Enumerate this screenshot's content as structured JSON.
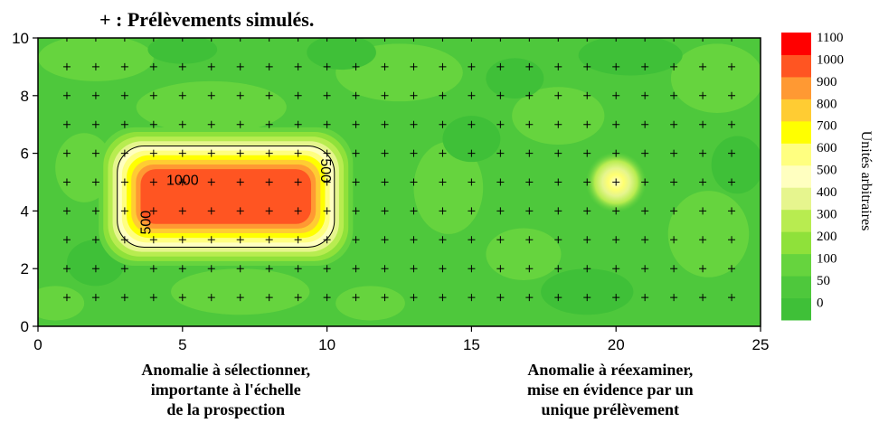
{
  "chart_data": {
    "type": "heatmap",
    "title": "+ : Prélèvements simulés.",
    "xlabel": "",
    "ylabel": "",
    "xlim": [
      0,
      25
    ],
    "ylim": [
      0,
      10
    ],
    "x_ticks": [
      "0",
      "5",
      "10",
      "15",
      "20",
      "25"
    ],
    "y_ticks": [
      "0",
      "2",
      "4",
      "6",
      "8",
      "10"
    ],
    "sample_grid": {
      "x": [
        1,
        2,
        3,
        4,
        5,
        6,
        7,
        8,
        9,
        10,
        11,
        12,
        13,
        14,
        15,
        16,
        17,
        18,
        19,
        20,
        21,
        22,
        23,
        24
      ],
      "y": [
        1,
        2,
        3,
        4,
        5,
        6,
        7,
        8,
        9,
        10
      ]
    },
    "anomalies": [
      {
        "shape": "rectangle",
        "x_range": [
          3,
          10
        ],
        "y_range": [
          3,
          6
        ],
        "peak": 1050
      },
      {
        "shape": "point",
        "x": 20,
        "y": 5,
        "peak": 700
      }
    ],
    "contour_labels": [
      {
        "text": "1000",
        "x": 5.0,
        "y": 4.9,
        "rotate": 0
      },
      {
        "text": "500",
        "x": 3.9,
        "y": 3.6,
        "rotate": -90
      },
      {
        "text": "500",
        "x": 9.8,
        "y": 5.4,
        "rotate": 90
      }
    ],
    "colorbar": {
      "levels": [
        0,
        50,
        100,
        200,
        300,
        400,
        500,
        600,
        700,
        800,
        900,
        1000,
        1100
      ],
      "tick_labels": [
        "0",
        "50",
        "100",
        "200",
        "300",
        "400",
        "500",
        "600",
        "700",
        "800",
        "900",
        "1000",
        "1100"
      ],
      "colors": [
        "#3fc038",
        "#4ec83c",
        "#66d43e",
        "#8fe13a",
        "#b8ec50",
        "#e6f58e",
        "#ffffc0",
        "#ffff80",
        "#ffff00",
        "#ffcc33",
        "#ff9933",
        "#ff5522",
        "#ff0000"
      ],
      "label": "Unités arbitraires"
    },
    "annotations": [
      {
        "lines": [
          "Anomalie à sélectionner,",
          "importante à l'échelle",
          "de la prospection"
        ],
        "x_center": 6.5
      },
      {
        "lines": [
          "Anomalie à réexaminer,",
          "mise en évidence par un",
          "unique prélèvement"
        ],
        "x_center": 19.8
      }
    ]
  }
}
